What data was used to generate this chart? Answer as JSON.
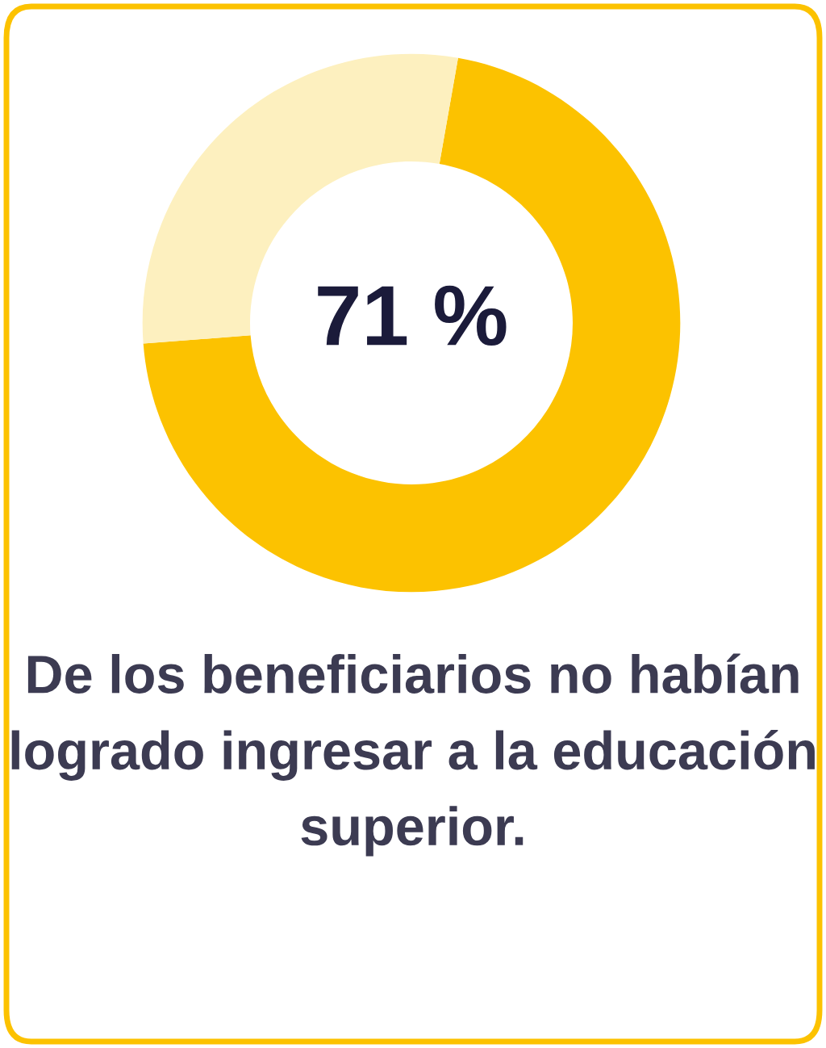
{
  "chart_data": {
    "type": "donut",
    "categories": [
      null,
      null
    ],
    "values": [
      71,
      29
    ],
    "colors": [
      "#fcc200",
      "#fdf0bf"
    ],
    "value_labels": [
      "71 %",
      null
    ],
    "annotations": [
      "De los beneficiarios no habían logrado ingresar a la educación superior."
    ]
  }
}
